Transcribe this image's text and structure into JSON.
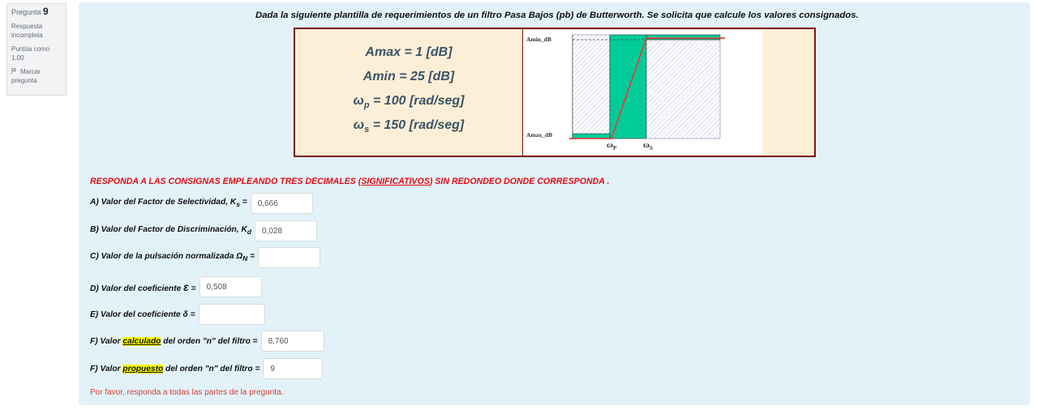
{
  "question_info": {
    "label": "Pregunta",
    "number": "9",
    "status": "Respuesta incompleta",
    "score": "Puntúa como 1,00",
    "flag": "Marcar pregunta"
  },
  "question": {
    "title": "Dada la siguiente plantilla de requerimientos de un filtro Pasa Bajos (pb)  de Butterworth. Se solicita que calcule los valores consignados.",
    "params": {
      "amax": "Amax = 1 [dB]",
      "amin": "Amin = 25 [dB]",
      "wp_sym": "ω",
      "wp_sub": "p",
      "wp_val": " =  100 [rad/seg]",
      "ws_sym": "ω",
      "ws_sub": "s",
      "ws_val": " = 150 [rad/seg]"
    },
    "graph": {
      "amin_label": "Amin_dB",
      "amax_label": "Amax_dB",
      "wp_sym": "ω",
      "wp_sub": "P",
      "ws_sym": "ω",
      "ws_sub": "S",
      "colors": {
        "band": "#00cc99",
        "curve": "#d9443c",
        "hatch": "#9aa0c0"
      }
    },
    "instruction": {
      "before": "RESPONDA A LAS CONSIGNAS EMPLEANDO TRES DECIMALES (",
      "underlined": "SIGNIFICATIVOS",
      "after": ") SIN REDONDEO DONDE CORRESPONDA ."
    },
    "fields": {
      "a": {
        "label": "A) Valor del Factor de Selectividad, K",
        "sub": "s",
        "suffix": " =",
        "value": "0,666"
      },
      "b": {
        "label": "B) Valor del Factor de Discriminación, K",
        "sub": "d",
        "suffix": "",
        "value": "0,028"
      },
      "c": {
        "label": "C) Valor de la pulsación normalizada Ω",
        "sub": "N",
        "suffix": " =",
        "value": ""
      },
      "d": {
        "label": "D) Valor del coeficiente ",
        "symbol": "ε",
        "suffix": " =",
        "value": "0,508"
      },
      "e": {
        "label": "E) Valor del coeficiente δ =",
        "value": ""
      },
      "f1": {
        "prefix": "F) Valor ",
        "highlight": "calculado",
        "rest": " del orden \"n\" del filtro =",
        "value": "8,760"
      },
      "f2": {
        "prefix": "F) Valor ",
        "highlight": "propuesto",
        "rest": " del orden \"n\" del filtro =",
        "value": "9"
      }
    },
    "warning": "Por favor, responda a todas las partes de la pregunta."
  }
}
